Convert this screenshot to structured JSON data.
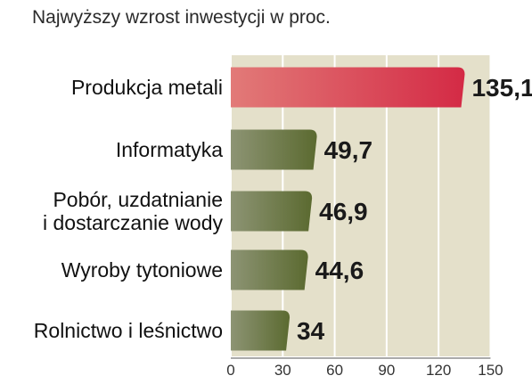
{
  "title": "Najwyższy wzrost inwestycji w proc.",
  "chart_data": {
    "type": "bar",
    "orientation": "horizontal",
    "title": "Najwyższy wzrost inwestycji w proc.",
    "categories": [
      [
        "Produkcja metali"
      ],
      [
        "Informatyka"
      ],
      [
        "Pobór, uzdatnianie",
        "i dostarczanie wody"
      ],
      [
        "Wyroby tytoniowe"
      ],
      [
        "Rolnictwo i leśnictwo"
      ]
    ],
    "values": [
      135.1,
      49.7,
      46.9,
      44.6,
      34
    ],
    "value_labels": [
      "135,1",
      "49,7",
      "46,9",
      "44,6",
      "34"
    ],
    "xlim": [
      0,
      150
    ],
    "xticks": [
      0,
      30,
      60,
      90,
      120,
      150
    ],
    "xtick_labels": [
      "0",
      "30",
      "60",
      "90",
      "120",
      "150"
    ],
    "grid": true,
    "colors": {
      "highlight_bar": "#d42a45",
      "highlight_bar_light": "#e27a78",
      "highlight_label": "#c8102e",
      "bar": "#5b6a30",
      "bar_light": "#8d9474",
      "background": "#e4e0ca",
      "gridline": "#ffffff"
    }
  }
}
